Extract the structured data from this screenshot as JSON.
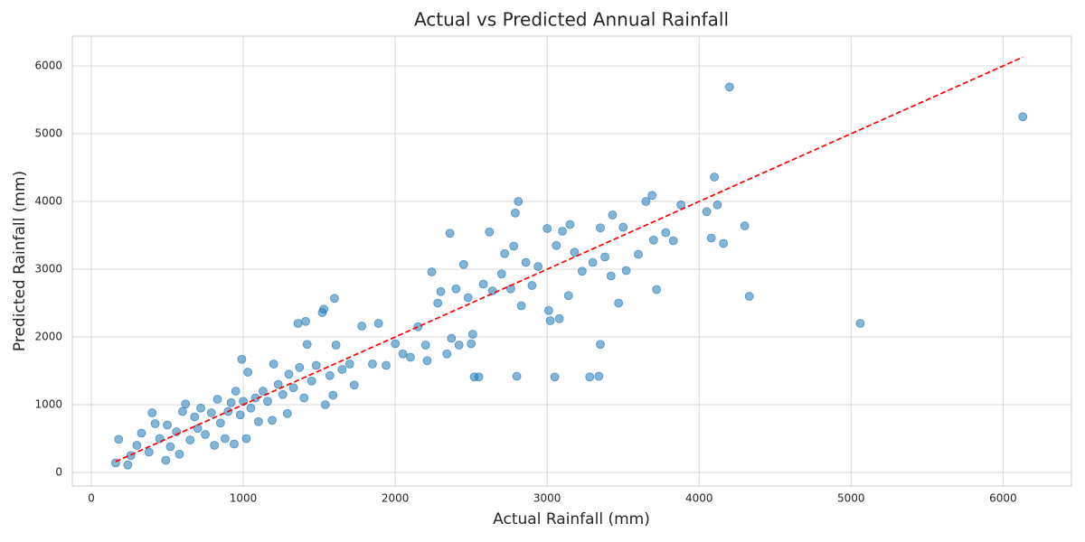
{
  "chart_data": {
    "type": "scatter",
    "title": "Actual vs Predicted Annual Rainfall",
    "x_label": "Actual Rainfall (mm)",
    "y_label": "Predicted Rainfall (mm)",
    "color": "#1f77b4",
    "grid": true,
    "xlim": [
      -125,
      6450
    ],
    "ylim": [
      -200,
      6440
    ],
    "xticks": [
      0,
      1000,
      2000,
      3000,
      4000,
      5000,
      6000
    ],
    "yticks": [
      0,
      1000,
      2000,
      3000,
      4000,
      5000,
      6000
    ],
    "reference_line": {
      "color": "#ff0000",
      "x": [
        160,
        6130
      ],
      "y": [
        160,
        6130
      ]
    },
    "x": [
      180,
      160,
      240,
      260,
      300,
      330,
      380,
      400,
      420,
      450,
      490,
      500,
      520,
      560,
      580,
      600,
      620,
      650,
      680,
      700,
      720,
      750,
      790,
      810,
      830,
      850,
      880,
      900,
      920,
      940,
      950,
      980,
      990,
      1000,
      1020,
      1030,
      1050,
      1080,
      1100,
      1130,
      1160,
      1190,
      1200,
      1230,
      1260,
      1290,
      1300,
      1330,
      1360,
      1370,
      1400,
      1410,
      1420,
      1450,
      1480,
      1520,
      1530,
      1540,
      1570,
      1590,
      1600,
      1610,
      1650,
      1700,
      1730,
      1780,
      1850,
      1890,
      1940,
      2000,
      2050,
      2100,
      2150,
      2200,
      2210,
      2240,
      2280,
      2300,
      2340,
      2360,
      2370,
      2400,
      2420,
      2450,
      2480,
      2500,
      2510,
      2520,
      2550,
      2580,
      2620,
      2640,
      2700,
      2720,
      2760,
      2780,
      2790,
      2800,
      2810,
      2830,
      2860,
      2900,
      2940,
      3000,
      3010,
      3020,
      3050,
      3060,
      3080,
      3100,
      3140,
      3150,
      3180,
      3230,
      3280,
      3300,
      3340,
      3350,
      3350,
      3380,
      3420,
      3430,
      3470,
      3500,
      3520,
      3600,
      3650,
      3690,
      3700,
      3720,
      3780,
      3830,
      3880,
      4050,
      4080,
      4100,
      4120,
      4160,
      4200,
      4300,
      4330,
      5060,
      6130
    ],
    "values": [
      490,
      140,
      110,
      250,
      400,
      580,
      300,
      880,
      720,
      500,
      180,
      700,
      380,
      600,
      270,
      900,
      1010,
      480,
      820,
      650,
      950,
      560,
      880,
      400,
      1080,
      730,
      500,
      900,
      1030,
      420,
      1200,
      850,
      1670,
      1050,
      500,
      1480,
      950,
      1100,
      750,
      1200,
      1050,
      770,
      1600,
      1300,
      1150,
      870,
      1450,
      1250,
      2200,
      1550,
      1100,
      2230,
      1890,
      1350,
      1580,
      2360,
      2410,
      1000,
      1430,
      1140,
      2570,
      1880,
      1520,
      1600,
      1290,
      2160,
      1600,
      2200,
      1580,
      1900,
      1750,
      1700,
      2150,
      1880,
      1650,
      2960,
      2500,
      2670,
      1750,
      3530,
      1980,
      2710,
      1880,
      3070,
      2580,
      1900,
      2040,
      1410,
      1410,
      2780,
      3550,
      2680,
      2930,
      3230,
      2710,
      3340,
      3830,
      1420,
      4000,
      2460,
      3100,
      2760,
      3040,
      3600,
      2390,
      2240,
      1410,
      3350,
      2270,
      3560,
      2610,
      3660,
      3250,
      2970,
      1410,
      3100,
      1420,
      1890,
      3610,
      3180,
      2900,
      3800,
      2500,
      3620,
      2980,
      3220,
      4000,
      4090,
      3430,
      2700,
      3540,
      3420,
      3950,
      3850,
      3460,
      4360,
      3950,
      3380,
      5690,
      3640,
      2600,
      2200,
      5250
    ]
  }
}
